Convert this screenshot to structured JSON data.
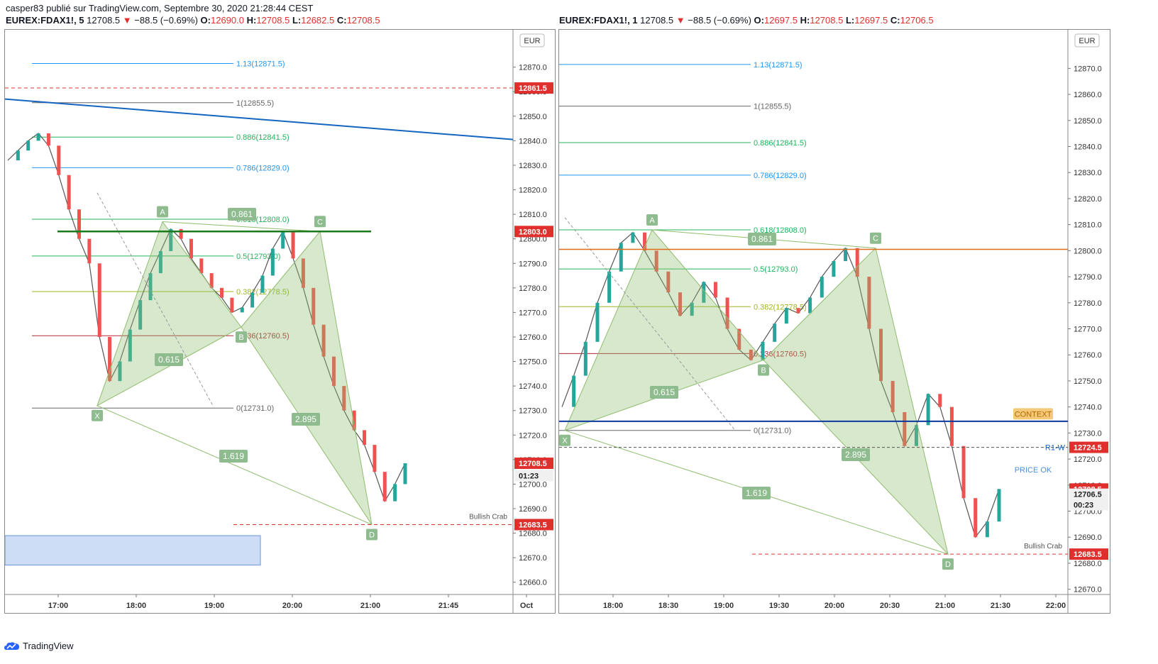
{
  "header": {
    "publisher": "casper83 publié sur TradingView.com, Septembre 30, 2020 21:28:44 CEST",
    "left_symbol": "EUREX:FDAX1!, 5",
    "right_symbol": "EUREX:FDAX1!, 1",
    "last": "12708.5",
    "change": "−88.5 (−0.69%)",
    "left_ohlc": {
      "o": "12690.0",
      "h": "12708.5",
      "l": "12682.5",
      "c": "12708.5"
    },
    "right_ohlc": {
      "o": "12697.5",
      "h": "12708.5",
      "l": "12697.5",
      "c": "12706.5"
    },
    "o_label": "O:",
    "h_label": "H:",
    "l_label": "L:",
    "c_label": "C:"
  },
  "footer": {
    "brand": "TradingView"
  },
  "colors": {
    "bull": "#26a69a",
    "bear": "#ef5350",
    "pattern": "#8fbc6f",
    "fib_blue": "#2196f3",
    "fib_green": "#21b45c",
    "fib_red": "#b22833",
    "trend": "#1565c0"
  },
  "chart_data": [
    {
      "type": "line",
      "name": "EUREX:FDAX1!, 5",
      "currency": "EUR",
      "ylim": [
        12655,
        12878
      ],
      "y_ticks": [
        "12870.0",
        "12860.0",
        "12850.0",
        "12840.0",
        "12830.0",
        "12820.0",
        "12810.0",
        "12800.0",
        "12790.0",
        "12780.0",
        "12770.0",
        "12760.0",
        "12750.0",
        "12740.0",
        "12730.0",
        "12720.0",
        "12710.0",
        "12700.0",
        "12690.0",
        "12680.0",
        "12670.0",
        "12660.0"
      ],
      "x_ticks": [
        "17:00",
        "18:00",
        "19:00",
        "20:00",
        "21:00",
        "21:45",
        "Oct"
      ],
      "price_tags": [
        {
          "label": "12861.5",
          "value": 12861.5
        },
        {
          "label": "12803.0",
          "value": 12803.0
        },
        {
          "label": "12708.5",
          "value": 12708.5
        },
        {
          "label": "01:23",
          "value": 12703.5
        },
        {
          "label": "12683.5",
          "value": 12683.5
        }
      ],
      "fib_levels": [
        {
          "label": "1.13(12871.5)",
          "value": 12871.5
        },
        {
          "label": "1(12855.5)",
          "value": 12855.5
        },
        {
          "label": "0.886(12841.5)",
          "value": 12841.5
        },
        {
          "label": "0.786(12829.0)",
          "value": 12829.0
        },
        {
          "label": "0.618(12808.0)",
          "value": 12808.0
        },
        {
          "label": "0.5(12793.0)",
          "value": 12793.0
        },
        {
          "label": "0.382(12778.5)",
          "value": 12778.5
        },
        {
          "label": "0.236(12760.5)",
          "value": 12760.5
        },
        {
          "label": "0(12731.0)",
          "value": 12731.0
        }
      ],
      "pattern_points": [
        {
          "label": "X",
          "value": 12732
        },
        {
          "label": "A",
          "value": 12807
        },
        {
          "label": "B",
          "value": 12764
        },
        {
          "label": "C",
          "value": 12803
        },
        {
          "label": "D",
          "value": 12683.5
        }
      ],
      "ratios": [
        "0.615",
        "0.861",
        "2.895",
        "1.619"
      ],
      "annotation": "Bullish Crab",
      "close_series": [
        12832,
        12836,
        12840,
        12843,
        12838,
        12826,
        12812,
        12800,
        12790,
        12760,
        12742,
        12750,
        12763,
        12775,
        12786,
        12795,
        12804,
        12800,
        12792,
        12786,
        12780,
        12776,
        12770,
        12772,
        12778,
        12785,
        12796,
        12803,
        12792,
        12780,
        12765,
        12752,
        12740,
        12730,
        12722,
        12716,
        12705,
        12693,
        12700,
        12708.5
      ]
    },
    {
      "type": "line",
      "name": "EUREX:FDAX1!, 1",
      "currency": "EUR",
      "ylim": [
        12668,
        12878
      ],
      "y_ticks": [
        "12870.0",
        "12860.0",
        "12850.0",
        "12840.0",
        "12830.0",
        "12820.0",
        "12810.0",
        "12800.0",
        "12790.0",
        "12780.0",
        "12770.0",
        "12760.0",
        "12750.0",
        "12740.0",
        "12730.0",
        "12720.0",
        "12710.0",
        "12700.0",
        "12690.0",
        "12680.0",
        "12670.0"
      ],
      "x_ticks": [
        "18:00",
        "18:30",
        "19:00",
        "19:30",
        "20:00",
        "20:30",
        "21:00",
        "21:30",
        "22:00"
      ],
      "price_tags": [
        {
          "label": "12724.5",
          "value": 12724.5
        },
        {
          "label": "12708.5",
          "value": 12708.5
        },
        {
          "label": "12706.5",
          "value": 12706.5
        },
        {
          "label": "00:23",
          "value": 12702.5
        },
        {
          "label": "12683.5",
          "value": 12683.5
        }
      ],
      "fib_levels": [
        {
          "label": "1.13(12871.5)",
          "value": 12871.5
        },
        {
          "label": "1(12855.5)",
          "value": 12855.5
        },
        {
          "label": "0.886(12841.5)",
          "value": 12841.5
        },
        {
          "label": "0.786(12829.0)",
          "value": 12829.0
        },
        {
          "label": "0.618(12808.0)",
          "value": 12808.0
        },
        {
          "label": "0.5(12793.0)",
          "value": 12793.0
        },
        {
          "label": "0.382(12778.5)",
          "value": 12778.5
        },
        {
          "label": "0.236(12760.5)",
          "value": 12760.5
        },
        {
          "label": "0(12731.0)",
          "value": 12731.0
        }
      ],
      "pattern_points": [
        {
          "label": "X",
          "value": 12731
        },
        {
          "label": "A",
          "value": 12808
        },
        {
          "label": "B",
          "value": 12758
        },
        {
          "label": "C",
          "value": 12801
        },
        {
          "label": "D",
          "value": 12683.5
        }
      ],
      "ratios": [
        "0.615",
        "0.861",
        "2.895",
        "1.619"
      ],
      "annotation": "Bullish Crab",
      "labels": {
        "context": "CONTEXT",
        "price_ok": "PRICE OK",
        "r1w": "R1-W"
      },
      "close_series": [
        12740,
        12752,
        12765,
        12780,
        12792,
        12803,
        12807,
        12800,
        12792,
        12784,
        12775,
        12780,
        12788,
        12782,
        12770,
        12762,
        12758,
        12765,
        12772,
        12778,
        12776,
        12782,
        12790,
        12796,
        12801,
        12790,
        12770,
        12750,
        12738,
        12725,
        12733,
        12745,
        12740,
        12725,
        12705,
        12690,
        12696,
        12708.5
      ]
    }
  ]
}
